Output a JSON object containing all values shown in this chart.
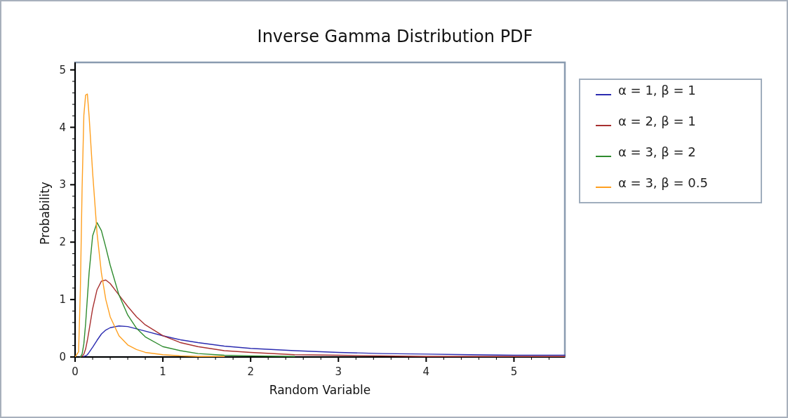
{
  "chart_data": {
    "type": "line",
    "title": "Inverse Gamma Distribution PDF",
    "xlabel": "Random Variable",
    "ylabel": "Probability",
    "x": [
      0,
      0.04,
      0.06,
      0.08,
      0.1,
      0.12,
      0.14,
      0.16,
      0.2,
      0.25,
      0.3,
      0.35,
      0.4,
      0.5,
      0.6,
      0.7,
      0.8,
      1.0,
      1.2,
      1.4,
      1.7,
      2.0,
      2.5,
      3,
      3.5,
      4,
      4.5,
      5,
      5.58
    ],
    "series": [
      {
        "name": "α = 1, β = 1",
        "color": "#2b2bb0",
        "values": [
          null,
          null,
          null,
          null,
          0.01,
          0.02,
          0.04,
          0.08,
          0.17,
          0.29,
          0.4,
          0.47,
          0.51,
          0.54,
          0.53,
          0.49,
          0.45,
          0.37,
          0.3,
          0.25,
          0.19,
          0.15,
          0.11,
          0.08,
          0.06,
          0.05,
          0.04,
          0.03,
          0.03
        ]
      },
      {
        "name": "α = 2, β = 1",
        "color": "#a83030",
        "values": [
          null,
          null,
          null,
          0.01,
          0.05,
          0.14,
          0.29,
          0.47,
          0.84,
          1.17,
          1.32,
          1.34,
          1.28,
          1.08,
          0.88,
          0.7,
          0.56,
          0.37,
          0.25,
          0.18,
          0.11,
          0.08,
          0.04,
          0.03,
          0.02,
          0.01,
          0.01,
          0.01,
          0.01
        ]
      },
      {
        "name": "α = 3, β = 2",
        "color": "#2e8b2e",
        "values": [
          null,
          null,
          0,
          0.05,
          0.23,
          0.58,
          1.03,
          1.47,
          2.11,
          2.34,
          2.2,
          1.91,
          1.6,
          1.08,
          0.73,
          0.5,
          0.35,
          0.18,
          0.11,
          0.06,
          0.03,
          0.02,
          0.01,
          null,
          null,
          null,
          null,
          null,
          null
        ]
      },
      {
        "name": "α = 3, β = 0.5",
        "color": "#ffa020",
        "values": [
          0,
          0.09,
          1.16,
          2.94,
          4.21,
          4.56,
          4.58,
          4.19,
          3.21,
          2.16,
          1.46,
          1.0,
          0.7,
          0.37,
          0.21,
          0.13,
          0.08,
          0.04,
          0.02,
          0.01,
          0.01,
          null,
          null,
          null,
          null,
          null,
          null,
          null,
          null
        ]
      }
    ],
    "xlim": [
      0,
      5.58
    ],
    "ylim": [
      0,
      5.13
    ],
    "xticks": [
      0,
      {
        "value": 0.2,
        "label": null
      },
      {
        "value": 0.4,
        "label": null
      },
      {
        "value": 0.6,
        "label": null
      },
      {
        "value": 0.8,
        "label": null
      },
      1,
      {
        "value": 1.2,
        "label": null
      },
      {
        "value": 1.4,
        "label": null
      },
      {
        "value": 1.6,
        "label": null
      },
      {
        "value": 1.8,
        "label": null
      },
      2,
      {
        "value": 2.2,
        "label": null
      },
      {
        "value": 2.4,
        "label": null
      },
      {
        "value": 2.6,
        "label": null
      },
      {
        "value": 2.8,
        "label": null
      },
      3,
      {
        "value": 3.2,
        "label": null
      },
      {
        "value": 3.4,
        "label": null
      },
      {
        "value": 3.6,
        "label": null
      },
      {
        "value": 3.8,
        "label": null
      },
      4,
      {
        "value": 4.2,
        "label": null
      },
      {
        "value": 4.4,
        "label": null
      },
      {
        "value": 4.6,
        "label": null
      },
      {
        "value": 4.8,
        "label": null
      },
      5,
      {
        "value": 5.2,
        "label": null
      },
      {
        "value": 5.4,
        "label": null
      }
    ],
    "yticks": [
      0,
      {
        "value": 0.2,
        "label": null
      },
      {
        "value": 0.4,
        "label": null
      },
      {
        "value": 0.6,
        "label": null
      },
      {
        "value": 0.8,
        "label": null
      },
      1,
      {
        "value": 1.2,
        "label": null
      },
      {
        "value": 1.4,
        "label": null
      },
      {
        "value": 1.6,
        "label": null
      },
      {
        "value": 1.8,
        "label": null
      },
      2,
      {
        "value": 2.2,
        "label": null
      },
      {
        "value": 2.4,
        "label": null
      },
      {
        "value": 2.6,
        "label": null
      },
      {
        "value": 2.8,
        "label": null
      },
      3,
      {
        "value": 3.2,
        "label": null
      },
      {
        "value": 3.4,
        "label": null
      },
      {
        "value": 3.6,
        "label": null
      },
      {
        "value": 3.8,
        "label": null
      },
      4,
      {
        "value": 4.2,
        "label": null
      },
      {
        "value": 4.4,
        "label": null
      },
      {
        "value": 4.6,
        "label": null
      },
      {
        "value": 4.8,
        "label": null
      },
      5
    ],
    "legend": "top right",
    "marker": "none",
    "line_style": "solid",
    "grid": false
  }
}
